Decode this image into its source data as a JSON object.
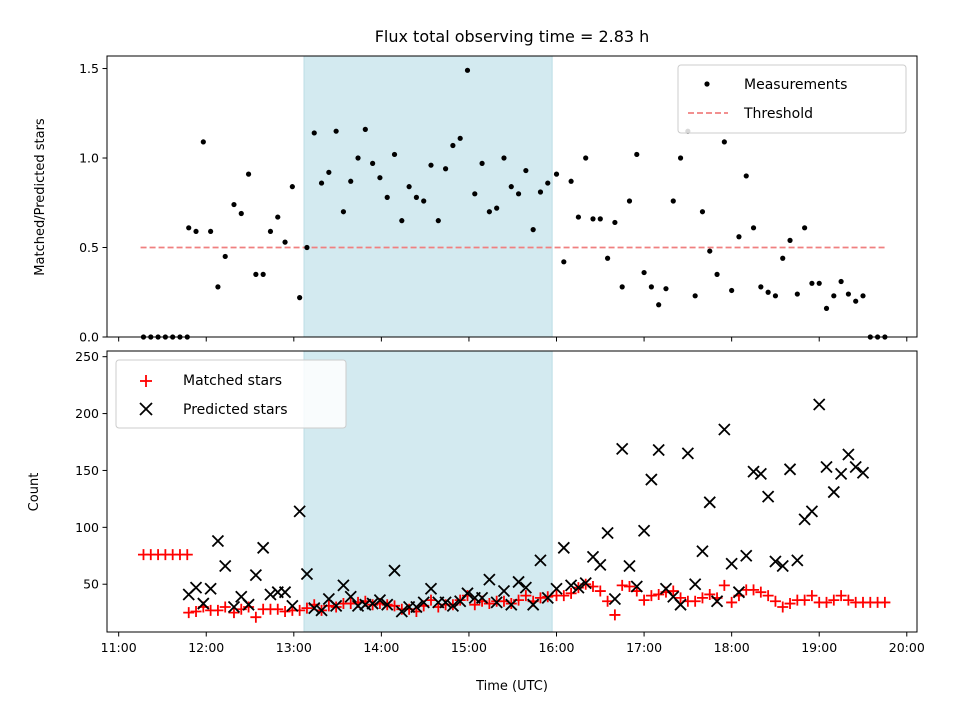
{
  "chart_data": [
    {
      "type": "scatter",
      "title": "Flux total observing time = 2.83 h",
      "xlabel": "",
      "ylabel": "Matched/Predicted stars",
      "xlim": [
        "10:52",
        "20:07"
      ],
      "ylim": [
        0,
        1.57
      ],
      "x_ticks": [
        "11:00",
        "12:00",
        "13:00",
        "14:00",
        "15:00",
        "16:00",
        "17:00",
        "18:00",
        "19:00",
        "20:00"
      ],
      "y_ticks": [
        "0.0",
        "0.5",
        "1.0",
        "1.5"
      ],
      "shaded_region": {
        "from": "13:07",
        "to": "15:57",
        "color": "#d3eaf0"
      },
      "legend_position": "top-right",
      "series": [
        {
          "name": "Measurements",
          "marker": "dot",
          "color": "#000000",
          "x": [
            "11:17",
            "11:22",
            "11:27",
            "11:32",
            "11:37",
            "11:42",
            "11:47",
            "11:48",
            "11:53",
            "11:58",
            "12:03",
            "12:08",
            "12:13",
            "12:19",
            "12:24",
            "12:29",
            "12:34",
            "12:39",
            "12:44",
            "12:49",
            "12:54",
            "12:59",
            "13:04",
            "13:09",
            "13:14",
            "13:19",
            "13:24",
            "13:29",
            "13:34",
            "13:39",
            "13:44",
            "13:49",
            "13:54",
            "13:59",
            "14:04",
            "14:09",
            "14:14",
            "14:19",
            "14:24",
            "14:29",
            "14:34",
            "14:39",
            "14:44",
            "14:49",
            "14:54",
            "14:59",
            "15:04",
            "15:09",
            "15:14",
            "15:19",
            "15:24",
            "15:29",
            "15:34",
            "15:39",
            "15:44",
            "15:49",
            "15:54",
            "16:00",
            "16:05",
            "16:10",
            "16:15",
            "16:20",
            "16:25",
            "16:30",
            "16:35",
            "16:40",
            "16:45",
            "16:50",
            "16:55",
            "17:00",
            "17:05",
            "17:10",
            "17:15",
            "17:20",
            "17:25",
            "17:30",
            "17:35",
            "17:40",
            "17:45",
            "17:50",
            "17:55",
            "18:00",
            "18:05",
            "18:10",
            "18:15",
            "18:20",
            "18:25",
            "18:30",
            "18:35",
            "18:40",
            "18:45",
            "18:50",
            "18:55",
            "19:00",
            "19:05",
            "19:10",
            "19:15",
            "19:20",
            "19:25",
            "19:30",
            "19:35",
            "19:40",
            "19:45"
          ],
          "y": [
            0.0,
            0.0,
            0.0,
            0.0,
            0.0,
            0.0,
            0.0,
            0.61,
            0.59,
            1.09,
            0.59,
            0.28,
            0.45,
            0.74,
            0.69,
            0.91,
            0.35,
            0.35,
            0.59,
            0.67,
            0.53,
            0.84,
            0.22,
            0.5,
            1.14,
            0.86,
            0.92,
            1.15,
            0.7,
            0.87,
            1.0,
            1.16,
            0.97,
            0.89,
            0.78,
            1.02,
            0.65,
            0.84,
            0.78,
            0.76,
            0.96,
            0.65,
            0.94,
            1.07,
            1.11,
            1.49,
            0.8,
            0.97,
            0.7,
            0.72,
            1.0,
            0.84,
            0.8,
            0.93,
            0.6,
            0.81,
            0.86,
            0.91,
            0.42,
            0.87,
            0.67,
            1.0,
            0.66,
            0.66,
            0.44,
            0.64,
            0.28,
            0.76,
            1.02,
            0.36,
            0.28,
            0.18,
            0.27,
            0.76,
            1.0,
            1.15,
            0.23,
            0.7,
            0.48,
            0.35,
            1.09,
            0.26,
            0.56,
            0.9,
            0.61,
            0.28,
            0.25,
            0.23,
            0.44,
            0.54,
            0.24,
            0.61,
            0.3,
            0.3,
            0.16,
            0.23,
            0.31,
            0.24,
            0.2,
            0.23,
            0.0,
            0.0,
            0.0
          ]
        },
        {
          "name": "Threshold",
          "type": "line",
          "style": "dashed",
          "color": "#f08080",
          "x": [
            "11:15",
            "19:45"
          ],
          "y": [
            0.5,
            0.5
          ]
        }
      ]
    },
    {
      "type": "scatter",
      "title": "",
      "xlabel": "Time (UTC)",
      "ylabel": "Count",
      "xlim": [
        "10:52",
        "20:07"
      ],
      "ylim": [
        8,
        255
      ],
      "x_ticks": [
        "11:00",
        "12:00",
        "13:00",
        "14:00",
        "15:00",
        "16:00",
        "17:00",
        "18:00",
        "19:00",
        "20:00"
      ],
      "y_ticks": [
        "50",
        "100",
        "150",
        "200",
        "250"
      ],
      "shaded_region": {
        "from": "13:07",
        "to": "15:57",
        "color": "#d3eaf0"
      },
      "legend_position": "top-left",
      "series": [
        {
          "name": "Matched stars",
          "marker": "plus",
          "color": "#ff0000",
          "x": [
            "11:17",
            "11:22",
            "11:27",
            "11:32",
            "11:37",
            "11:42",
            "11:47",
            "11:48",
            "11:53",
            "11:58",
            "12:03",
            "12:08",
            "12:13",
            "12:19",
            "12:24",
            "12:29",
            "12:34",
            "12:39",
            "12:44",
            "12:49",
            "12:54",
            "12:59",
            "13:04",
            "13:09",
            "13:14",
            "13:19",
            "13:24",
            "13:29",
            "13:34",
            "13:39",
            "13:44",
            "13:49",
            "13:54",
            "13:59",
            "14:04",
            "14:09",
            "14:14",
            "14:19",
            "14:24",
            "14:29",
            "14:34",
            "14:39",
            "14:44",
            "14:49",
            "14:54",
            "14:59",
            "15:04",
            "15:09",
            "15:14",
            "15:19",
            "15:24",
            "15:29",
            "15:34",
            "15:39",
            "15:44",
            "15:49",
            "15:54",
            "16:00",
            "16:05",
            "16:10",
            "16:15",
            "16:20",
            "16:25",
            "16:30",
            "16:35",
            "16:40",
            "16:45",
            "16:50",
            "16:55",
            "17:00",
            "17:05",
            "17:10",
            "17:15",
            "17:20",
            "17:25",
            "17:30",
            "17:35",
            "17:40",
            "17:45",
            "17:50",
            "17:55",
            "18:00",
            "18:05",
            "18:10",
            "18:15",
            "18:20",
            "18:25",
            "18:30",
            "18:35",
            "18:40",
            "18:45",
            "18:50",
            "18:55",
            "19:00",
            "19:05",
            "19:10",
            "19:15",
            "19:20",
            "19:25",
            "19:30",
            "19:35",
            "19:40",
            "19:45"
          ],
          "y": [
            76,
            76,
            76,
            76,
            76,
            76,
            76,
            25,
            26,
            30,
            27,
            27,
            30,
            25,
            28,
            30,
            21,
            28,
            28,
            28,
            26,
            27,
            27,
            29,
            32,
            27,
            31,
            30,
            33,
            33,
            34,
            35,
            32,
            33,
            32,
            31,
            28,
            28,
            26,
            31,
            36,
            30,
            32,
            32,
            36,
            40,
            32,
            35,
            33,
            35,
            35,
            33,
            36,
            40,
            35,
            38,
            39,
            40,
            40,
            42,
            47,
            50,
            48,
            44,
            35,
            23,
            49,
            48,
            44,
            36,
            40,
            41,
            43,
            44,
            38,
            35,
            35,
            38,
            41,
            38,
            49,
            34,
            40,
            45,
            45,
            43,
            40,
            35,
            30,
            33,
            36,
            36,
            40,
            34,
            34,
            36,
            40,
            36,
            34,
            34,
            34,
            34,
            34
          ]
        },
        {
          "name": "Predicted stars",
          "marker": "x",
          "color": "#000000",
          "x": [
            "11:48",
            "11:53",
            "11:58",
            "12:03",
            "12:08",
            "12:13",
            "12:19",
            "12:24",
            "12:29",
            "12:34",
            "12:39",
            "12:44",
            "12:49",
            "12:54",
            "12:59",
            "13:04",
            "13:09",
            "13:14",
            "13:19",
            "13:24",
            "13:29",
            "13:34",
            "13:39",
            "13:44",
            "13:49",
            "13:54",
            "13:59",
            "14:04",
            "14:09",
            "14:14",
            "14:19",
            "14:24",
            "14:29",
            "14:34",
            "14:39",
            "14:44",
            "14:49",
            "14:54",
            "14:59",
            "15:04",
            "15:09",
            "15:14",
            "15:19",
            "15:24",
            "15:29",
            "15:34",
            "15:39",
            "15:44",
            "15:49",
            "15:54",
            "16:00",
            "16:05",
            "16:10",
            "16:15",
            "16:20",
            "16:25",
            "16:30",
            "16:35",
            "16:40",
            "16:45",
            "16:50",
            "16:55",
            "17:00",
            "17:05",
            "17:10",
            "17:15",
            "17:20",
            "17:25",
            "17:30",
            "17:35",
            "17:40",
            "17:45",
            "17:50",
            "17:55",
            "18:00",
            "18:05",
            "18:10",
            "18:15",
            "18:20",
            "18:25",
            "18:30",
            "18:35",
            "18:40",
            "18:45",
            "18:50",
            "18:55",
            "19:00",
            "19:05",
            "19:10",
            "19:15",
            "19:20",
            "19:25",
            "19:30"
          ],
          "y": [
            41,
            47,
            33,
            46,
            88,
            66,
            30,
            39,
            32,
            58,
            82,
            41,
            43,
            43,
            31,
            114,
            59,
            29,
            27,
            37,
            31,
            49,
            39,
            31,
            32,
            33,
            36,
            32,
            62,
            26,
            30,
            30,
            34,
            46,
            34,
            34,
            31,
            35,
            42,
            38,
            38,
            54,
            34,
            44,
            32,
            52,
            47,
            32,
            71,
            38,
            46,
            82,
            49,
            47,
            51,
            74,
            67,
            95,
            37,
            169,
            66,
            48,
            97,
            142,
            168,
            46,
            39,
            32,
            165,
            50,
            79,
            122,
            35,
            186,
            68,
            43,
            75,
            149,
            147,
            127,
            70,
            66,
            151,
            71,
            107,
            114,
            208,
            153,
            131,
            147,
            164,
            153,
            148
          ]
        }
      ]
    }
  ]
}
